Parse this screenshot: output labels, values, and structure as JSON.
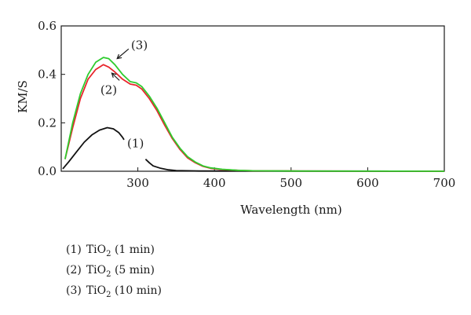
{
  "chart_data": {
    "type": "line",
    "title": "",
    "xlabel": "Wavelength (nm)",
    "ylabel": "KM/S",
    "xlim": [
      200,
      700
    ],
    "ylim": [
      0,
      0.6
    ],
    "xticks": [
      "300",
      "400",
      "500",
      "600",
      "700"
    ],
    "yticks": [
      "0.0",
      "0.2",
      "0.4",
      "0.6"
    ],
    "grid": false,
    "series": [
      {
        "name": "(1)",
        "color": "#111111",
        "points": [
          [
            202,
            0.01
          ],
          [
            210,
            0.04
          ],
          [
            220,
            0.08
          ],
          [
            230,
            0.12
          ],
          [
            240,
            0.15
          ],
          [
            250,
            0.17
          ],
          [
            260,
            0.18
          ],
          [
            268,
            0.175
          ],
          [
            275,
            0.16
          ],
          [
            280,
            0.14
          ],
          [
            282,
            0.13
          ]
        ],
        "points_b": [
          [
            310,
            0.05
          ],
          [
            315,
            0.035
          ],
          [
            320,
            0.022
          ],
          [
            330,
            0.012
          ],
          [
            340,
            0.006
          ],
          [
            350,
            0.003
          ],
          [
            380,
            0.001
          ],
          [
            700,
            0.0
          ]
        ]
      },
      {
        "name": "(2)",
        "color": "#e8262c",
        "points": [
          [
            205,
            0.05
          ],
          [
            215,
            0.18
          ],
          [
            225,
            0.3
          ],
          [
            235,
            0.38
          ],
          [
            245,
            0.42
          ],
          [
            255,
            0.44
          ],
          [
            262,
            0.43
          ],
          [
            270,
            0.41
          ],
          [
            280,
            0.38
          ],
          [
            290,
            0.36
          ],
          [
            298,
            0.355
          ],
          [
            305,
            0.34
          ],
          [
            315,
            0.3
          ],
          [
            325,
            0.25
          ],
          [
            335,
            0.19
          ],
          [
            345,
            0.135
          ],
          [
            355,
            0.09
          ],
          [
            365,
            0.055
          ],
          [
            375,
            0.035
          ],
          [
            385,
            0.02
          ],
          [
            395,
            0.012
          ],
          [
            410,
            0.007
          ],
          [
            430,
            0.004
          ],
          [
            450,
            0.002
          ],
          [
            500,
            0.001
          ],
          [
            700,
            0.0
          ]
        ]
      },
      {
        "name": "(3)",
        "color": "#2ecc2e",
        "points": [
          [
            205,
            0.05
          ],
          [
            215,
            0.2
          ],
          [
            225,
            0.32
          ],
          [
            235,
            0.4
          ],
          [
            245,
            0.45
          ],
          [
            255,
            0.47
          ],
          [
            262,
            0.465
          ],
          [
            270,
            0.44
          ],
          [
            280,
            0.4
          ],
          [
            290,
            0.37
          ],
          [
            298,
            0.365
          ],
          [
            305,
            0.35
          ],
          [
            315,
            0.31
          ],
          [
            325,
            0.26
          ],
          [
            335,
            0.2
          ],
          [
            345,
            0.14
          ],
          [
            355,
            0.095
          ],
          [
            365,
            0.06
          ],
          [
            375,
            0.038
          ],
          [
            385,
            0.022
          ],
          [
            395,
            0.014
          ],
          [
            410,
            0.008
          ],
          [
            430,
            0.004
          ],
          [
            450,
            0.002
          ],
          [
            500,
            0.001
          ],
          [
            700,
            0.0
          ]
        ]
      }
    ],
    "annotations": [
      {
        "text": "(1)",
        "x": 297,
        "y": 0.115
      },
      {
        "text": "(2)",
        "x": 262,
        "y": 0.335
      },
      {
        "text": "(3)",
        "x": 302,
        "y": 0.52
      }
    ],
    "arrows": [
      {
        "for": "(3)",
        "from": [
          288,
          0.505
        ],
        "to": [
          273,
          0.465
        ]
      },
      {
        "for": "(2)",
        "from": [
          276,
          0.375
        ],
        "to": [
          266,
          0.405
        ]
      }
    ]
  },
  "legend": [
    {
      "num": "(1)",
      "sym": "TiO",
      "sub": "2",
      "detail": "(1 min)"
    },
    {
      "num": "(2)",
      "sym": "TiO",
      "sub": "2",
      "detail": "(5 min)"
    },
    {
      "num": "(3)",
      "sym": "TiO",
      "sub": "2",
      "detail": "(10 min)"
    }
  ]
}
